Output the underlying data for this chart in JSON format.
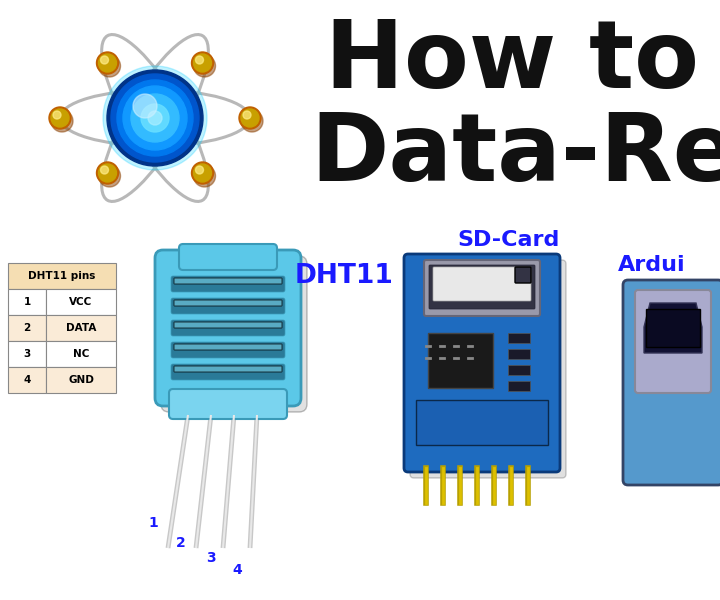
{
  "bg_color": "#ffffff",
  "title_line1": "How to m",
  "title_line2": "Data-Rec",
  "title_color": "#111111",
  "title_fontsize": 68,
  "dht11_label": "DHT11",
  "dht11_label_color": "#1a1aff",
  "sdcard_label": "SD-Card",
  "sdcard_label_color": "#1a1aff",
  "arduino_label": "Ardui",
  "arduino_label_color": "#1a1aff",
  "table_header": "DHT11 pins",
  "table_rows": [
    [
      "1",
      "VCC"
    ],
    [
      "2",
      "DATA"
    ],
    [
      "3",
      "NC"
    ],
    [
      "4",
      "GND"
    ]
  ],
  "table_header_bg": "#f5deb3",
  "table_row_bg": "#faebd7",
  "table_row_bg2": "#ffffff",
  "table_border": "#888888",
  "pin_numbers": [
    "1",
    "2",
    "3",
    "4"
  ],
  "pin_color": "#1a1aff",
  "atom_orbit_color": "#b8b8b8",
  "atom_core_color": "#1e90ff",
  "atom_glow_color": "#00ccff",
  "atom_node_color": "#c8a000",
  "atom_node_shadow": "#8b4000",
  "dht11_body_color": "#5bc8e8",
  "dht11_body_shadow": "#3a9ab8",
  "dht11_body_dark": "#2a7a98",
  "sdcard_board_color": "#1e6bbf",
  "sdcard_board_dark": "#0a3a7a",
  "sdcard_chip_color": "#222222",
  "sdcard_slot_color": "#888888",
  "usb_body_color": "#5599cc",
  "usb_port_color": "#222244",
  "usb_metal_color": "#aaaacc"
}
